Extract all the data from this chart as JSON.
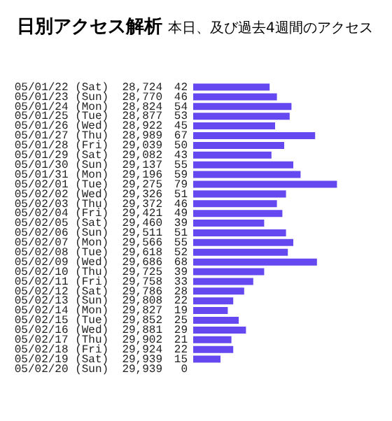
{
  "chart_data": {
    "type": "bar",
    "orientation": "horizontal",
    "title": "日別アクセス解析",
    "subtitle": "本日、及び過去4週間のアクセス",
    "categories": [
      "05/01/22 (Sat)  28,724",
      "05/01/23 (Sun)  28,770",
      "05/01/24 (Mon)  28,824",
      "05/01/25 (Tue)  28,877",
      "05/01/26 (Wed)  28,922",
      "05/01/27 (Thu)  28,989",
      "05/01/28 (Fri)  29,039",
      "05/01/29 (Sat)  29,082",
      "05/01/30 (Sun)  29,137",
      "05/01/31 (Mon)  29,196",
      "05/02/01 (Tue)  29,275",
      "05/02/02 (Wed)  29,326",
      "05/02/03 (Thu)  29,372",
      "05/02/04 (Fri)  29,421",
      "05/02/05 (Sat)  29,460",
      "05/02/06 (Sun)  29,511",
      "05/02/07 (Mon)  29,566",
      "05/02/08 (Tue)  29,618",
      "05/02/09 (Wed)  29,686",
      "05/02/10 (Thu)  29,725",
      "05/02/11 (Fri)  29,758",
      "05/02/12 (Sat)  29,786",
      "05/02/13 (Sun)  29,808",
      "05/02/14 (Mon)  29,827",
      "05/02/15 (Tue)  29,852",
      "05/02/16 (Wed)  29,881",
      "05/02/17 (Thu)  29,902",
      "05/02/18 (Fri)  29,924",
      "05/02/19 (Sat)  29,939",
      "05/02/20 (Sun)  29,939"
    ],
    "values": [
      42,
      46,
      54,
      53,
      45,
      67,
      50,
      43,
      55,
      59,
      79,
      51,
      46,
      49,
      39,
      51,
      55,
      52,
      68,
      39,
      33,
      28,
      22,
      19,
      25,
      29,
      21,
      22,
      15,
      0
    ],
    "color": "#6648f0",
    "data_labels": true,
    "grid": false,
    "legend": false
  }
}
